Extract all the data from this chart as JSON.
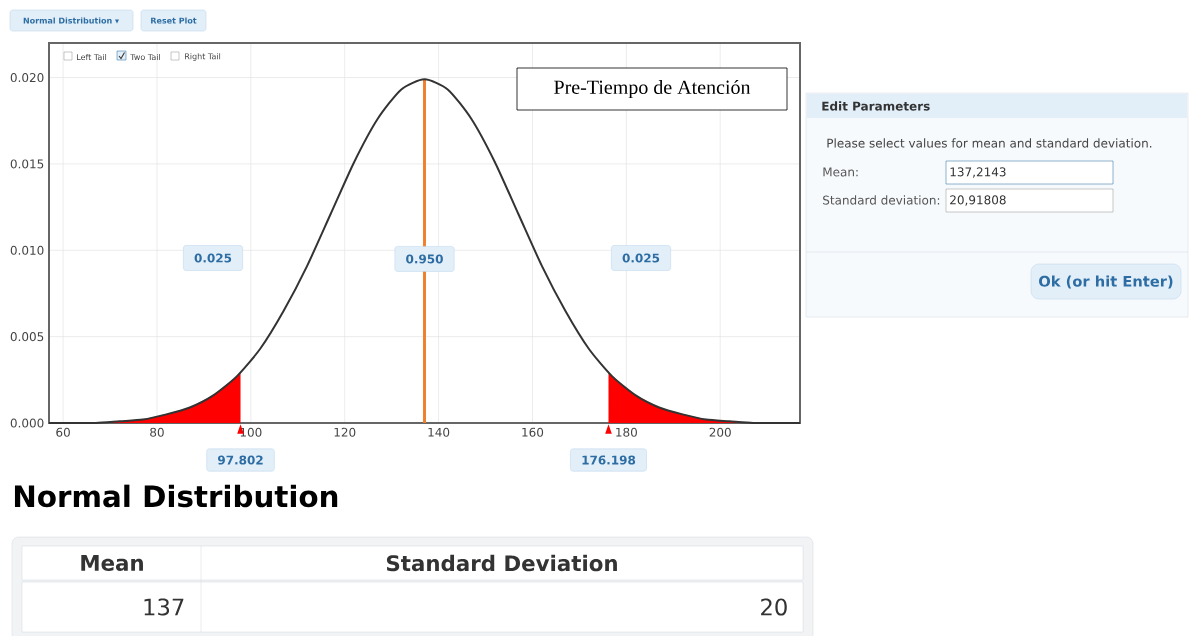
{
  "chart_data": {
    "type": "line",
    "title": "Pre-Tiempo de Atención",
    "xlim": [
      57,
      217
    ],
    "ylim": [
      0,
      0.022
    ],
    "xticks": [
      60,
      80,
      100,
      120,
      140,
      160,
      180,
      200
    ],
    "yticks": [
      {
        "value": 0,
        "label": "0.000"
      },
      {
        "value": 0.005,
        "label": "0.005"
      },
      {
        "value": 0.01,
        "label": "0.010"
      },
      {
        "value": 0.015,
        "label": "0.015"
      },
      {
        "value": 0.02,
        "label": "0.020"
      }
    ],
    "grid": true,
    "marker": "none",
    "series": [
      {
        "type": "area",
        "color": "#ff0000",
        "x": [
          57,
          62,
          67,
          72,
          77,
          82,
          87,
          92,
          97,
          97.802
        ],
        "values": [
          0.0,
          0.0,
          0.0,
          0.0001,
          0.0002,
          0.0005,
          0.0009,
          0.0016,
          0.0027,
          0.0029
        ]
      },
      {
        "type": "area",
        "color": "#ff0000",
        "x": [
          176.198,
          177,
          182,
          187,
          192,
          197,
          202,
          207,
          212,
          217
        ],
        "values": [
          0.0029,
          0.0027,
          0.0016,
          0.0009,
          0.0005,
          0.0002,
          0.0001,
          0.0,
          0.0,
          0.0
        ]
      },
      {
        "color": "#f07f2a",
        "x": [
          137,
          137
        ],
        "values": [
          0,
          0.0199
        ]
      },
      {
        "color": "#333333",
        "x": [
          57,
          62,
          67,
          72,
          77,
          82,
          87,
          92,
          97,
          102,
          107,
          112,
          117,
          122,
          127,
          132,
          137,
          142,
          147,
          152,
          157,
          162,
          167,
          172,
          177,
          182,
          187,
          192,
          197,
          202,
          207,
          212,
          217
        ],
        "values": [
          0.0,
          0.0,
          0.0,
          0.0001,
          0.0002,
          0.0005,
          0.0009,
          0.0016,
          0.0027,
          0.0043,
          0.0065,
          0.0091,
          0.0121,
          0.0151,
          0.0176,
          0.0193,
          0.0199,
          0.0193,
          0.0176,
          0.0151,
          0.0121,
          0.0091,
          0.0065,
          0.0043,
          0.0027,
          0.0016,
          0.0009,
          0.0005,
          0.0002,
          0.0001,
          0.0,
          0.0,
          0.0
        ]
      }
    ],
    "annotations": [
      "Normal Distribution ▾",
      "Reset Plot",
      "Left Tail",
      "Two Tail",
      "Right Tail",
      "0.025",
      {
        "text": "0.950",
        "x": 137,
        "y": 0.0095
      },
      "0.025",
      {
        "text": "97.802",
        "x": 97.802,
        "y": 0
      },
      {
        "text": "176.198",
        "x": 176.198,
        "y": 0
      },
      "Edit Parameters",
      "Please select values for mean and standard deviation.",
      "Mean:",
      "137,2143",
      "Standard deviation:",
      "20,91808",
      "Ok (or hit Enter)",
      "Normal Distribution",
      "Mean",
      "Standard Deviation",
      "137",
      "20"
    ]
  }
}
